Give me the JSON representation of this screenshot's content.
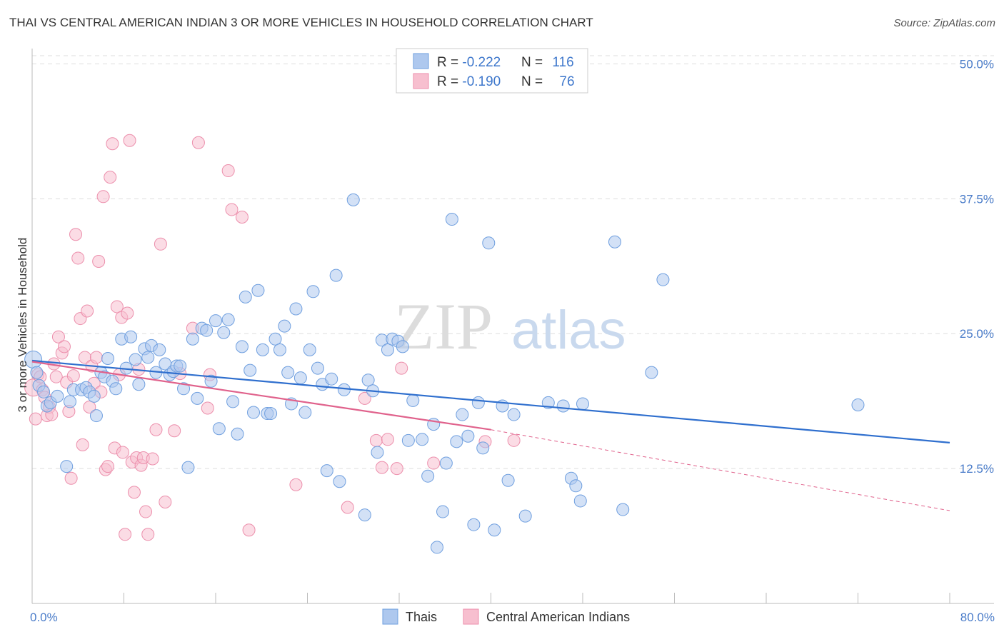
{
  "header": {
    "title": "THAI VS CENTRAL AMERICAN INDIAN 3 OR MORE VEHICLES IN HOUSEHOLD CORRELATION CHART",
    "source": "Source: ZipAtlas.com"
  },
  "watermark": {
    "part1": "ZIP",
    "part2": "atlas"
  },
  "colors": {
    "blue_fill": "#aec8ee",
    "blue_stroke": "#6f9fdf",
    "blue_line": "#2f6fce",
    "pink_fill": "#f7bfcf",
    "pink_stroke": "#ec8fac",
    "pink_line": "#e0628c",
    "axis_text": "#4a7cc9",
    "grid": "#dddddd"
  },
  "legend_top": {
    "rows": [
      {
        "r_label": "R = ",
        "r_value": "-0.222",
        "n_label": "N = ",
        "n_value": "116"
      },
      {
        "r_label": "R = ",
        "r_value": "-0.190",
        "n_label": "N = ",
        "n_value": "76"
      }
    ]
  },
  "chart_data": {
    "type": "scatter",
    "title": "THAI VS CENTRAL AMERICAN INDIAN 3 OR MORE VEHICLES IN HOUSEHOLD CORRELATION CHART",
    "xlabel": "",
    "ylabel": "3 or more Vehicles in Household",
    "xlim": [
      0,
      80
    ],
    "ylim": [
      0,
      52.5
    ],
    "x_tick_labels": [
      "0.0%",
      "80.0%"
    ],
    "y_ticks": [
      12.5,
      25.0,
      37.5,
      50.0
    ],
    "y_tick_labels": [
      "12.5%",
      "25.0%",
      "37.5%",
      "50.0%"
    ],
    "grid": true,
    "legend_position": "bottom",
    "series": [
      {
        "name": "Thais",
        "points": [
          [
            0.1,
            22.6
          ],
          [
            0.4,
            21.4
          ],
          [
            0.6,
            20.2
          ],
          [
            1.0,
            19.6
          ],
          [
            1.3,
            18.3
          ],
          [
            1.6,
            18.6
          ],
          [
            2.2,
            19.2
          ],
          [
            3.0,
            12.7
          ],
          [
            3.3,
            18.7
          ],
          [
            3.6,
            19.8
          ],
          [
            4.3,
            19.8
          ],
          [
            4.7,
            20.0
          ],
          [
            5.0,
            19.6
          ],
          [
            5.4,
            19.2
          ],
          [
            5.6,
            17.4
          ],
          [
            6.0,
            21.4
          ],
          [
            6.3,
            21.0
          ],
          [
            6.6,
            22.7
          ],
          [
            7.0,
            20.6
          ],
          [
            7.3,
            19.9
          ],
          [
            7.8,
            24.5
          ],
          [
            8.2,
            21.8
          ],
          [
            8.6,
            24.7
          ],
          [
            9.0,
            22.6
          ],
          [
            9.3,
            20.3
          ],
          [
            9.8,
            23.6
          ],
          [
            10.1,
            22.8
          ],
          [
            10.4,
            23.9
          ],
          [
            10.8,
            21.4
          ],
          [
            11.1,
            23.5
          ],
          [
            11.6,
            22.2
          ],
          [
            12.0,
            21.2
          ],
          [
            12.3,
            21.5
          ],
          [
            12.6,
            22.0
          ],
          [
            12.9,
            22.0
          ],
          [
            13.2,
            19.9
          ],
          [
            13.6,
            12.6
          ],
          [
            14.0,
            24.5
          ],
          [
            14.4,
            19.0
          ],
          [
            14.8,
            25.5
          ],
          [
            15.2,
            25.3
          ],
          [
            15.6,
            20.6
          ],
          [
            16.0,
            26.2
          ],
          [
            16.3,
            16.2
          ],
          [
            16.7,
            25.1
          ],
          [
            17.1,
            26.3
          ],
          [
            17.5,
            18.7
          ],
          [
            17.9,
            15.7
          ],
          [
            18.3,
            23.8
          ],
          [
            18.6,
            28.4
          ],
          [
            19.0,
            21.6
          ],
          [
            19.3,
            17.7
          ],
          [
            19.7,
            29.0
          ],
          [
            20.1,
            23.5
          ],
          [
            20.5,
            17.6
          ],
          [
            20.8,
            17.6
          ],
          [
            21.2,
            24.5
          ],
          [
            21.6,
            23.5
          ],
          [
            22.0,
            25.7
          ],
          [
            22.3,
            21.4
          ],
          [
            22.6,
            18.5
          ],
          [
            23.0,
            27.3
          ],
          [
            23.4,
            20.9
          ],
          [
            23.8,
            17.7
          ],
          [
            24.2,
            23.5
          ],
          [
            24.5,
            28.9
          ],
          [
            24.9,
            21.8
          ],
          [
            25.3,
            20.3
          ],
          [
            25.7,
            12.3
          ],
          [
            26.1,
            20.8
          ],
          [
            26.5,
            30.4
          ],
          [
            26.8,
            11.3
          ],
          [
            27.2,
            19.8
          ],
          [
            28.0,
            37.4
          ],
          [
            29.0,
            8.2
          ],
          [
            29.3,
            20.7
          ],
          [
            29.7,
            19.7
          ],
          [
            30.1,
            14.0
          ],
          [
            30.5,
            24.4
          ],
          [
            31.0,
            23.5
          ],
          [
            31.4,
            24.5
          ],
          [
            31.9,
            24.3
          ],
          [
            32.3,
            23.8
          ],
          [
            32.8,
            15.1
          ],
          [
            33.2,
            18.8
          ],
          [
            34.0,
            15.2
          ],
          [
            34.5,
            11.8
          ],
          [
            35.0,
            16.6
          ],
          [
            35.3,
            5.2
          ],
          [
            35.8,
            8.5
          ],
          [
            36.1,
            13.0
          ],
          [
            36.6,
            35.6
          ],
          [
            37.0,
            15.0
          ],
          [
            37.5,
            17.5
          ],
          [
            38.0,
            15.5
          ],
          [
            38.5,
            7.3
          ],
          [
            38.9,
            18.6
          ],
          [
            39.3,
            14.4
          ],
          [
            39.8,
            33.4
          ],
          [
            40.3,
            6.8
          ],
          [
            41.0,
            18.3
          ],
          [
            41.5,
            11.4
          ],
          [
            42.0,
            17.5
          ],
          [
            43.0,
            8.1
          ],
          [
            45.0,
            18.6
          ],
          [
            46.3,
            18.3
          ],
          [
            47.0,
            11.6
          ],
          [
            47.4,
            10.9
          ],
          [
            47.8,
            9.5
          ],
          [
            48.0,
            18.5
          ],
          [
            50.8,
            33.5
          ],
          [
            51.5,
            8.7
          ],
          [
            54.0,
            21.4
          ],
          [
            55.0,
            30.0
          ],
          [
            72.0,
            18.4
          ]
        ]
      },
      {
        "name": "Central American Indians",
        "points": [
          [
            0.1,
            20.0
          ],
          [
            0.3,
            17.1
          ],
          [
            0.5,
            21.2
          ],
          [
            0.7,
            21.0
          ],
          [
            0.9,
            19.8
          ],
          [
            1.1,
            19.1
          ],
          [
            1.3,
            17.4
          ],
          [
            1.5,
            18.2
          ],
          [
            1.7,
            17.5
          ],
          [
            1.9,
            22.2
          ],
          [
            2.1,
            21.0
          ],
          [
            2.3,
            24.7
          ],
          [
            2.6,
            23.2
          ],
          [
            2.8,
            23.8
          ],
          [
            3.0,
            20.5
          ],
          [
            3.2,
            17.8
          ],
          [
            3.4,
            11.6
          ],
          [
            3.6,
            21.1
          ],
          [
            3.8,
            34.2
          ],
          [
            4.0,
            32.0
          ],
          [
            4.2,
            26.4
          ],
          [
            4.4,
            14.7
          ],
          [
            4.6,
            22.8
          ],
          [
            4.8,
            27.1
          ],
          [
            5.0,
            18.2
          ],
          [
            5.2,
            22.0
          ],
          [
            5.4,
            20.4
          ],
          [
            5.6,
            22.8
          ],
          [
            5.8,
            31.7
          ],
          [
            6.0,
            19.6
          ],
          [
            6.2,
            37.7
          ],
          [
            6.4,
            12.4
          ],
          [
            6.6,
            12.7
          ],
          [
            6.8,
            39.5
          ],
          [
            7.0,
            42.6
          ],
          [
            7.2,
            14.4
          ],
          [
            7.4,
            27.5
          ],
          [
            7.6,
            21.2
          ],
          [
            7.8,
            26.5
          ],
          [
            7.9,
            14.0
          ],
          [
            8.1,
            6.4
          ],
          [
            8.3,
            26.9
          ],
          [
            8.5,
            42.9
          ],
          [
            8.7,
            13.1
          ],
          [
            8.9,
            10.3
          ],
          [
            9.1,
            13.5
          ],
          [
            9.3,
            21.7
          ],
          [
            9.5,
            12.8
          ],
          [
            9.7,
            13.5
          ],
          [
            9.9,
            8.5
          ],
          [
            10.1,
            6.4
          ],
          [
            10.5,
            13.4
          ],
          [
            10.8,
            16.1
          ],
          [
            11.2,
            33.3
          ],
          [
            11.6,
            9.4
          ],
          [
            12.4,
            16.0
          ],
          [
            12.9,
            21.3
          ],
          [
            14.0,
            25.5
          ],
          [
            15.3,
            18.1
          ],
          [
            15.5,
            21.2
          ],
          [
            14.5,
            42.7
          ],
          [
            17.1,
            40.1
          ],
          [
            17.4,
            36.5
          ],
          [
            18.3,
            35.8
          ],
          [
            18.9,
            6.8
          ],
          [
            23.0,
            11.0
          ],
          [
            27.5,
            8.9
          ],
          [
            29.0,
            19.0
          ],
          [
            30.0,
            15.1
          ],
          [
            30.5,
            12.6
          ],
          [
            31.0,
            15.2
          ],
          [
            31.8,
            12.5
          ],
          [
            32.2,
            21.8
          ],
          [
            35.0,
            13.0
          ],
          [
            39.5,
            15.0
          ],
          [
            42.0,
            15.1
          ]
        ]
      }
    ],
    "trend_lines": [
      {
        "series": "Thais",
        "x": [
          0,
          80
        ],
        "y": [
          22.5,
          14.9
        ]
      },
      {
        "series": "Central American Indians",
        "x": [
          0,
          40
        ],
        "y": [
          22.4,
          16.1
        ],
        "dashed_extension_to_x": 80,
        "dashed_extension_y": 8.6
      }
    ]
  },
  "legend_bottom": {
    "items": [
      {
        "label": "Thais"
      },
      {
        "label": "Central American Indians"
      }
    ]
  }
}
